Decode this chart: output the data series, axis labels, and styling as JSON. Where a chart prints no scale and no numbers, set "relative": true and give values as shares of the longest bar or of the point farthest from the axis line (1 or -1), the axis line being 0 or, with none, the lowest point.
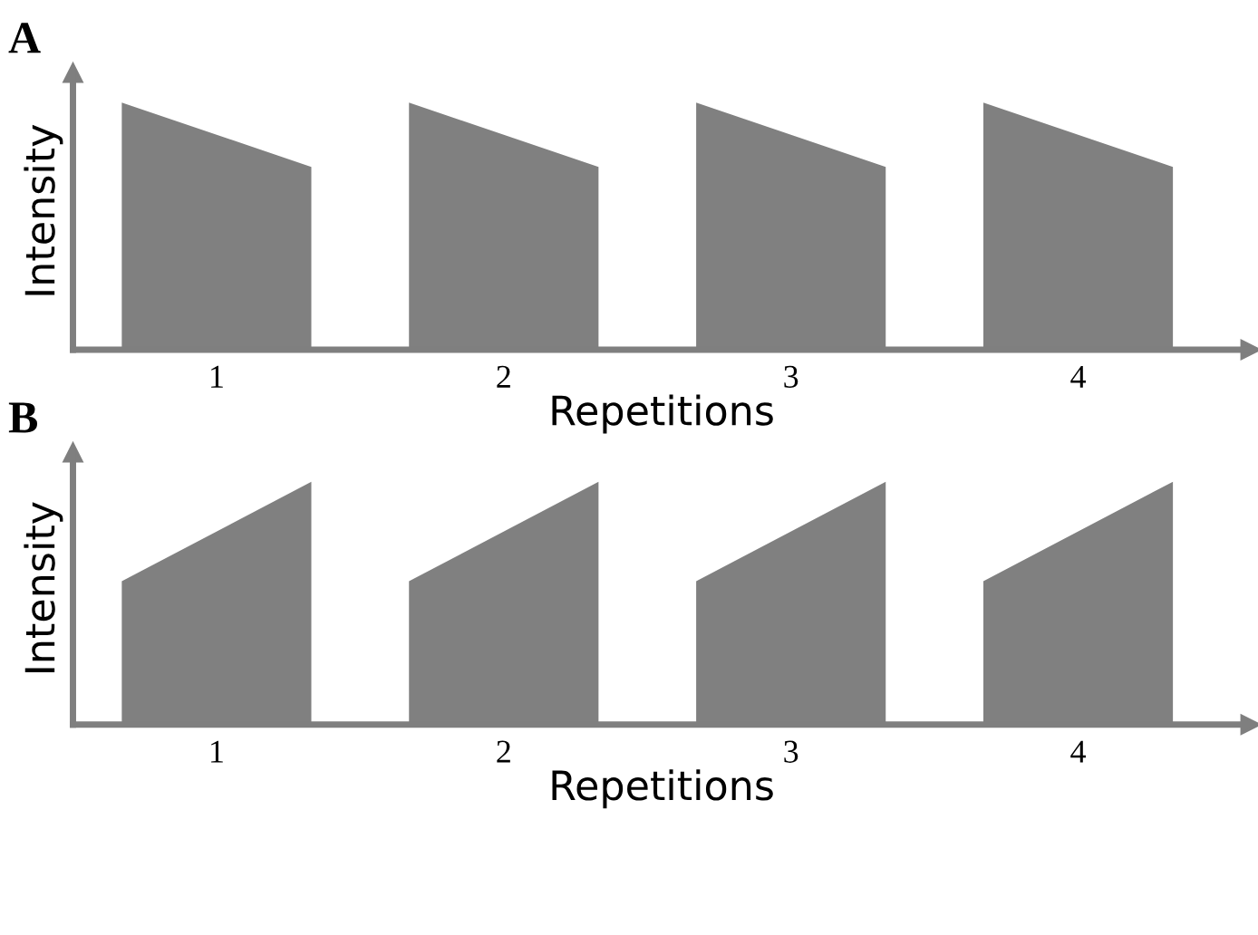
{
  "chart_data": [
    {
      "type": "area",
      "title": "A",
      "xlabel": "Repetitions",
      "ylabel": "Intensity",
      "relative": true,
      "xlim": [
        0.5,
        4.6
      ],
      "xticks": [
        1,
        2,
        3,
        4
      ],
      "series": [
        {
          "color": "#808080",
          "x": [
            0.67,
            0.67,
            1.33,
            1.33,
            1.67,
            1.67,
            2.33,
            2.33,
            2.67,
            2.67,
            3.33,
            3.33,
            3.67,
            3.67,
            4.33,
            4.33
          ],
          "values": [
            0,
            1,
            0.74,
            0,
            0,
            1,
            0.74,
            0,
            0,
            1,
            0.74,
            0,
            0,
            1,
            0.74,
            0
          ]
        }
      ],
      "grid": false,
      "legend": false
    },
    {
      "type": "area",
      "title": "B",
      "xlabel": "Repetitions",
      "ylabel": "Intensity",
      "relative": true,
      "xlim": [
        0.5,
        4.6
      ],
      "xticks": [
        1,
        2,
        3,
        4
      ],
      "series": [
        {
          "color": "#808080",
          "x": [
            0.67,
            0.67,
            1.33,
            1.33,
            1.67,
            1.67,
            2.33,
            2.33,
            2.67,
            2.67,
            3.33,
            3.33,
            3.67,
            3.67,
            4.33,
            4.33
          ],
          "values": [
            0,
            0.59,
            1,
            0,
            0,
            0.59,
            1,
            0,
            0,
            0.59,
            1,
            0,
            0,
            0.59,
            1,
            0
          ]
        }
      ],
      "grid": false,
      "legend": false
    }
  ]
}
